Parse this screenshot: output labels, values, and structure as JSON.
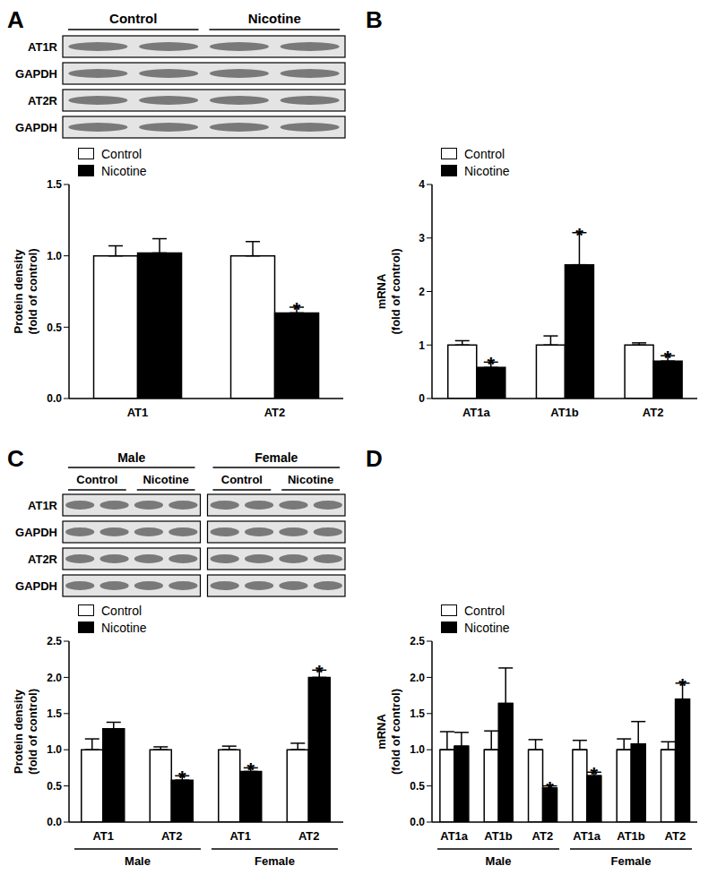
{
  "chart_data": [
    {
      "panel": "A",
      "type": "bar",
      "categories": [
        "AT1",
        "AT2"
      ],
      "y_label": [
        "Protein density",
        "(fold of control)"
      ],
      "ylim": [
        0,
        1.5
      ],
      "yticks": [
        {
          "value": 0,
          "label": "0.0"
        },
        {
          "value": 0.5,
          "label": "0.5"
        },
        {
          "value": 1,
          "label": "1.0"
        },
        {
          "value": 1.5,
          "label": "1.5"
        }
      ],
      "legend": "upper left",
      "series": [
        {
          "name": "Control",
          "color": "#ffffff",
          "values": [
            1.0,
            1.0
          ],
          "errors": [
            0.07,
            0.1
          ]
        },
        {
          "name": "Nicotine",
          "color": "#000000",
          "values": [
            1.02,
            0.6
          ],
          "errors": [
            0.1,
            0.04
          ],
          "significance": [
            null,
            "*"
          ]
        }
      ],
      "blot": {
        "lane_groups": [
          "Control",
          "Nicotine"
        ],
        "rows": [
          "AT1R",
          "GAPDH",
          "AT2R",
          "GAPDH"
        ]
      }
    },
    {
      "panel": "B",
      "type": "bar",
      "categories": [
        "AT1a",
        "AT1b",
        "AT2"
      ],
      "y_label": [
        "mRNA",
        "(fold of control)"
      ],
      "ylim": [
        0,
        4
      ],
      "yticks": [
        0,
        1,
        2,
        3,
        4
      ],
      "legend": "upper left",
      "series": [
        {
          "name": "Control",
          "color": "#ffffff",
          "values": [
            1.0,
            1.0,
            1.0
          ],
          "errors": [
            0.08,
            0.17,
            0.04
          ]
        },
        {
          "name": "Nicotine",
          "color": "#000000",
          "values": [
            0.58,
            2.5,
            0.7
          ],
          "errors": [
            0.1,
            0.6,
            0.1
          ],
          "significance": [
            "*",
            "*",
            "*"
          ]
        }
      ]
    },
    {
      "panel": "C",
      "type": "bar",
      "categories": [
        "AT1",
        "AT2",
        "AT1",
        "AT2"
      ],
      "category_groups": [
        "Male",
        "Male",
        "Female",
        "Female"
      ],
      "y_label": [
        "Protein density",
        "(fold of control)"
      ],
      "ylim": [
        0,
        2.5
      ],
      "yticks": [
        {
          "value": 0,
          "label": "0.0"
        },
        {
          "value": 0.5,
          "label": "0.5"
        },
        {
          "value": 1,
          "label": "1.0"
        },
        {
          "value": 1.5,
          "label": "1.5"
        },
        {
          "value": 2,
          "label": "2.0"
        },
        {
          "value": 2.5,
          "label": "2.5"
        }
      ],
      "legend": "upper left",
      "series": [
        {
          "name": "Control",
          "color": "#ffffff",
          "values": [
            1.0,
            1.0,
            1.0,
            1.0
          ],
          "errors": [
            0.15,
            0.04,
            0.05,
            0.09
          ]
        },
        {
          "name": "Nicotine",
          "color": "#000000",
          "values": [
            1.29,
            0.58,
            0.7,
            2.0
          ],
          "errors": [
            0.09,
            0.06,
            0.05,
            0.1
          ],
          "significance": [
            null,
            "*",
            "*",
            "*"
          ]
        }
      ],
      "blot": {
        "sex_groups": [
          "Male",
          "Female"
        ],
        "lane_groups": [
          "Control",
          "Nicotine"
        ],
        "rows": [
          "AT1R",
          "GAPDH",
          "AT2R",
          "GAPDH"
        ]
      }
    },
    {
      "panel": "D",
      "type": "bar",
      "categories": [
        "AT1a",
        "AT1b",
        "AT2",
        "AT1a",
        "AT1b",
        "AT2"
      ],
      "category_groups": [
        "Male",
        "Male",
        "Male",
        "Female",
        "Female",
        "Female"
      ],
      "y_label": [
        "mRNA",
        "(fold of control)"
      ],
      "ylim": [
        0,
        2.5
      ],
      "yticks": [
        {
          "value": 0,
          "label": "0.0"
        },
        {
          "value": 0.5,
          "label": "0.5"
        },
        {
          "value": 1,
          "label": "1.0"
        },
        {
          "value": 1.5,
          "label": "1.5"
        },
        {
          "value": 2,
          "label": "2.0"
        },
        {
          "value": 2.5,
          "label": "2.5"
        }
      ],
      "legend": "upper left",
      "series": [
        {
          "name": "Control",
          "color": "#ffffff",
          "values": [
            1.0,
            1.0,
            1.0,
            1.0,
            1.0,
            1.0
          ],
          "errors": [
            0.25,
            0.26,
            0.14,
            0.13,
            0.15,
            0.11
          ]
        },
        {
          "name": "Nicotine",
          "color": "#000000",
          "values": [
            1.05,
            1.64,
            0.47,
            0.64,
            1.08,
            1.7
          ],
          "errors": [
            0.19,
            0.49,
            0.03,
            0.05,
            0.31,
            0.22
          ],
          "significance": [
            null,
            null,
            "*",
            "*",
            null,
            "*"
          ]
        }
      ]
    }
  ]
}
